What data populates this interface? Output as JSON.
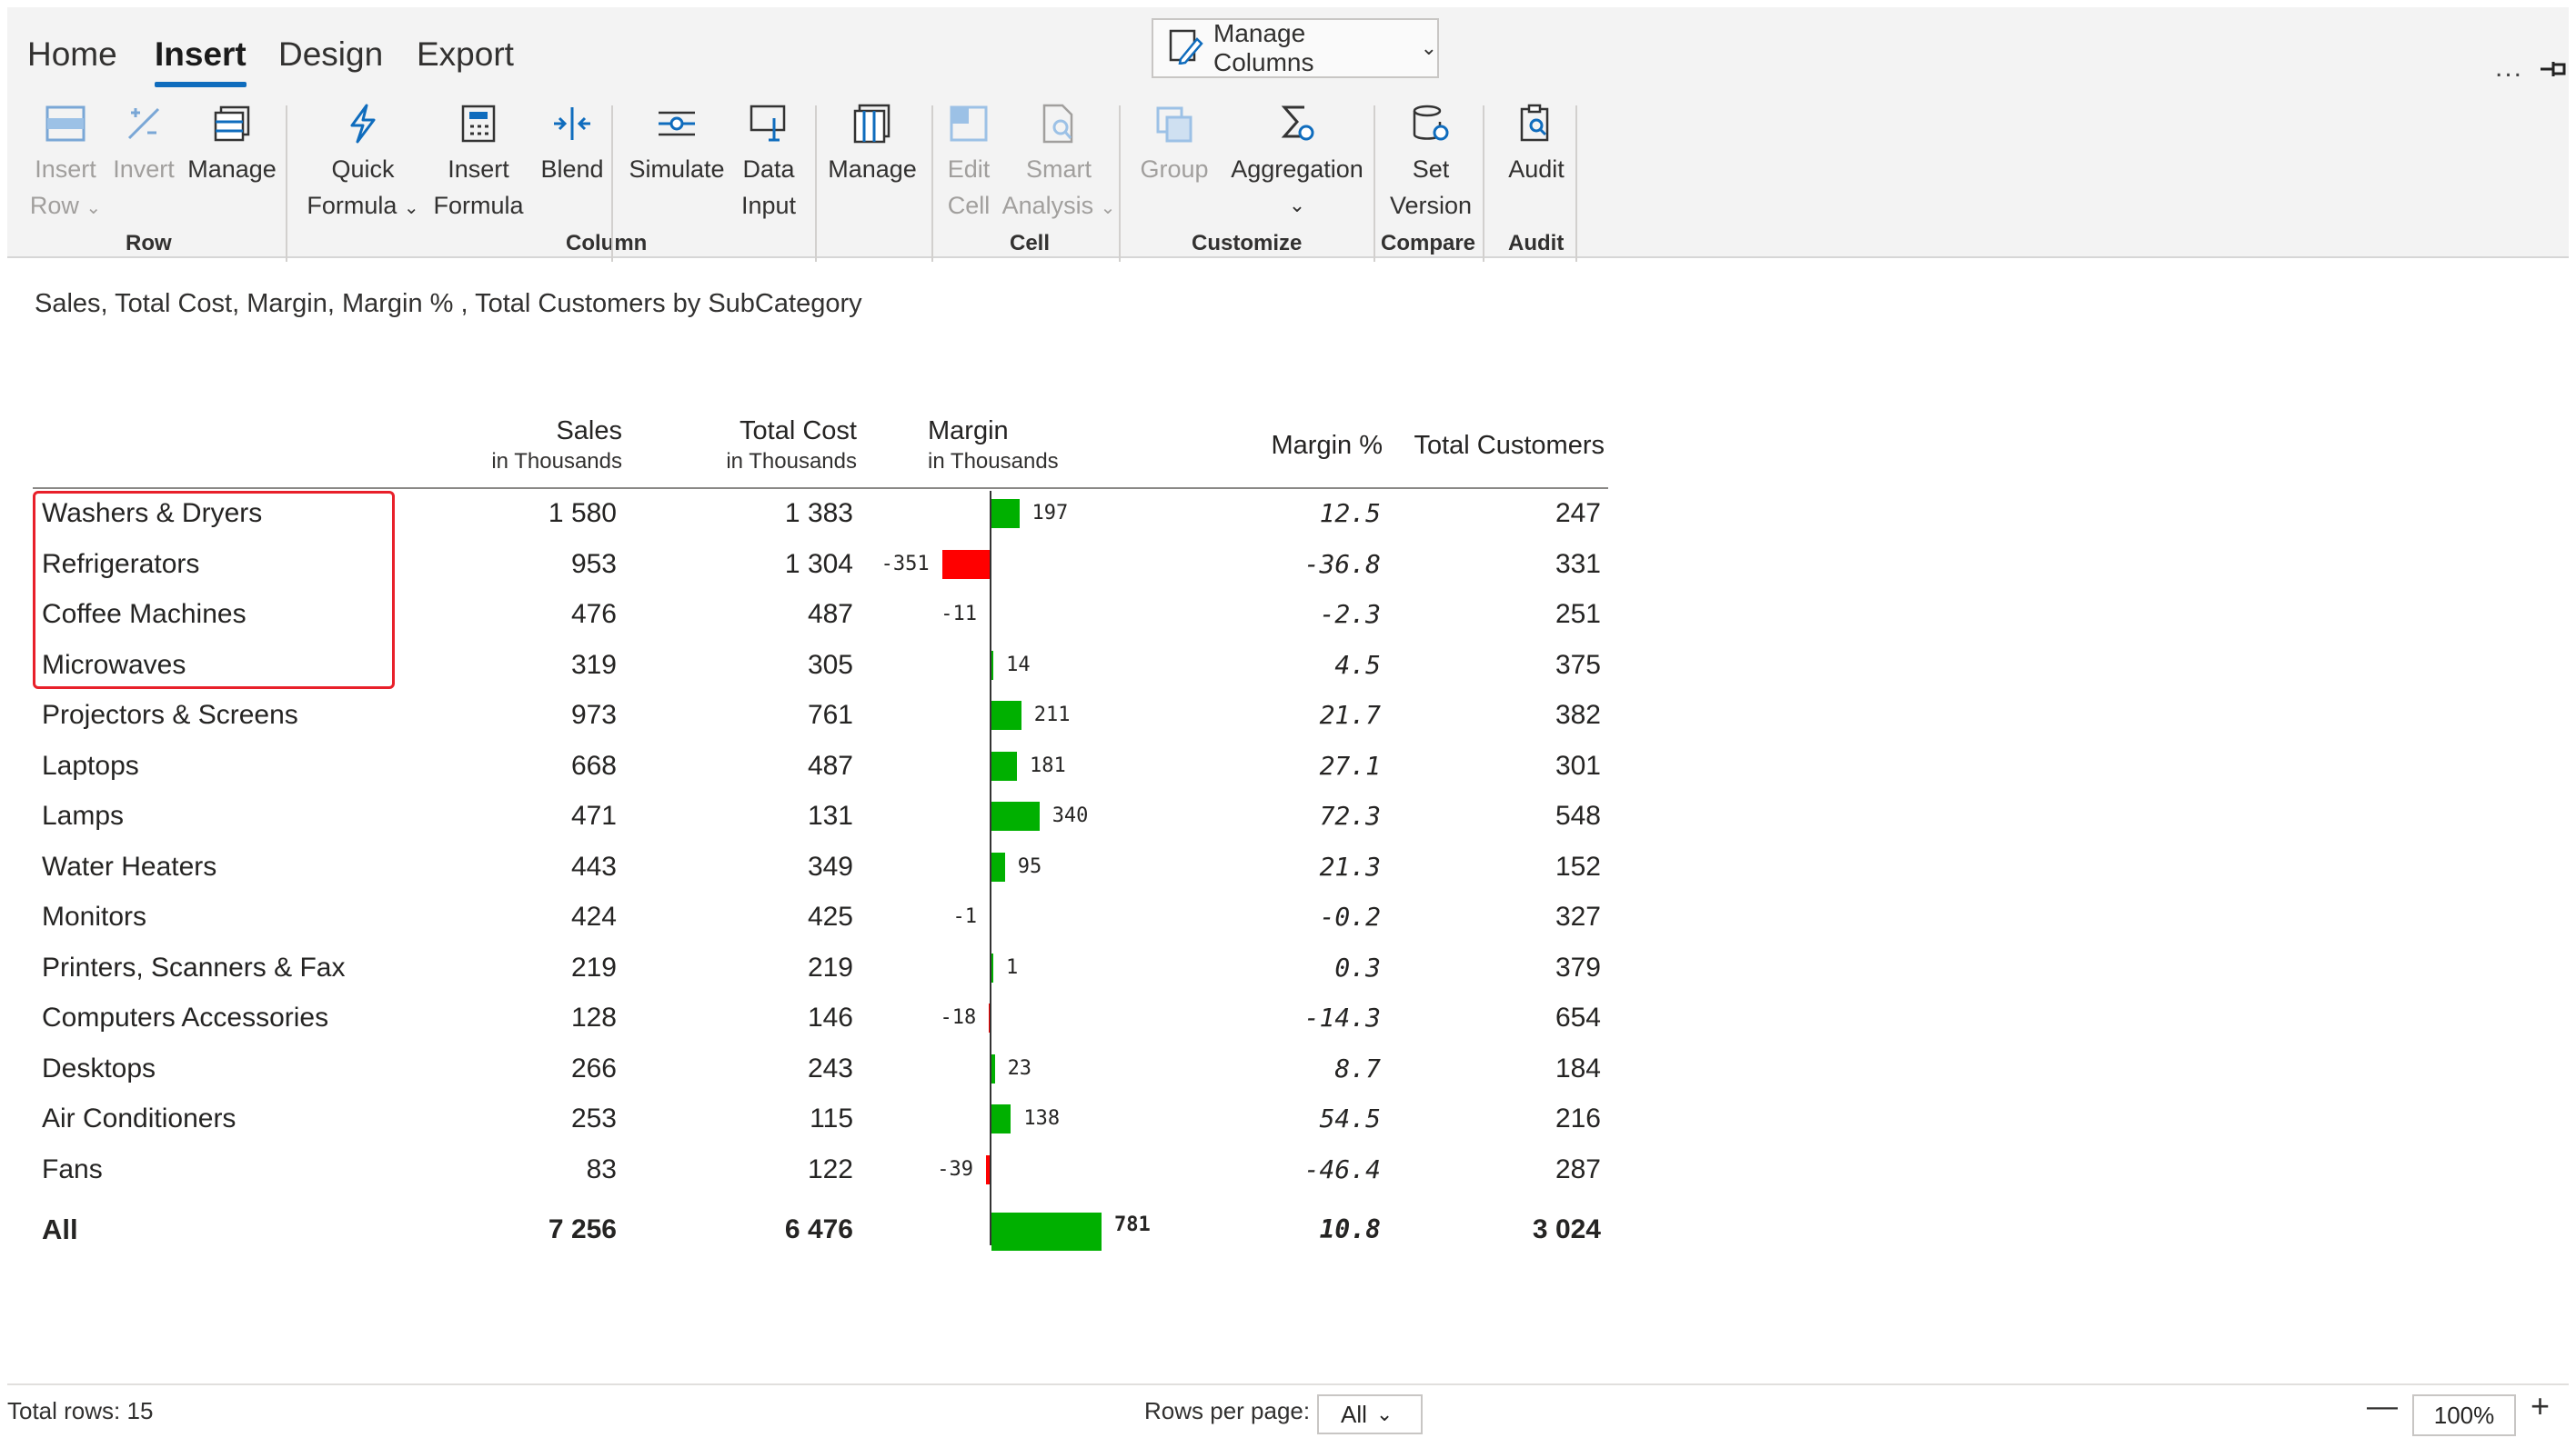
{
  "ribbon": {
    "tabs": [
      "Home",
      "Insert",
      "Design",
      "Export"
    ],
    "active_tab": "Insert",
    "manage_columns_label": "Manage Columns",
    "more": "...",
    "buttons": {
      "insert_row": [
        "Insert",
        "Row"
      ],
      "invert": "Invert",
      "manage_row": "Manage",
      "quick_formula": [
        "Quick",
        "Formula"
      ],
      "insert_formula": [
        "Insert",
        "Formula"
      ],
      "blend": "Blend",
      "simulate": "Simulate",
      "data_input": [
        "Data",
        "Input"
      ],
      "manage": "Manage",
      "edit_cell": [
        "Edit",
        "Cell"
      ],
      "smart_analysis": [
        "Smart",
        "Analysis"
      ],
      "group": "Group",
      "aggregation": "Aggregation",
      "set_version": [
        "Set",
        "Version"
      ],
      "audit": "Audit"
    },
    "groups": {
      "row": "Row",
      "column": "Column",
      "cell": "Cell",
      "customize": "Customize",
      "compare": "Compare",
      "audit": "Audit"
    }
  },
  "report": {
    "title": "Sales, Total Cost, Margin, Margin % , Total Customers by SubCategory",
    "columns": {
      "sales": {
        "label": "Sales",
        "sub": "in Thousands"
      },
      "total_cost": {
        "label": "Total Cost",
        "sub": "in Thousands"
      },
      "margin": {
        "label": "Margin",
        "sub": "in Thousands"
      },
      "margin_pct": {
        "label": "Margin %"
      },
      "customers": {
        "label": "Total Customers"
      }
    },
    "rows": [
      {
        "name": "Washers & Dryers",
        "sales": "1 580",
        "cost": "1 383",
        "margin": 197,
        "margin_label": "197",
        "pct": "12.5",
        "customers": "247"
      },
      {
        "name": "Refrigerators",
        "sales": "953",
        "cost": "1 304",
        "margin": -351,
        "margin_label": "-351",
        "pct": "-36.8",
        "customers": "331"
      },
      {
        "name": "Coffee Machines",
        "sales": "476",
        "cost": "487",
        "margin": -11,
        "margin_label": "-11",
        "pct": "-2.3",
        "customers": "251"
      },
      {
        "name": "Microwaves",
        "sales": "319",
        "cost": "305",
        "margin": 14,
        "margin_label": "14",
        "pct": "4.5",
        "customers": "375"
      },
      {
        "name": "Projectors & Screens",
        "sales": "973",
        "cost": "761",
        "margin": 211,
        "margin_label": "211",
        "pct": "21.7",
        "customers": "382"
      },
      {
        "name": "Laptops",
        "sales": "668",
        "cost": "487",
        "margin": 181,
        "margin_label": "181",
        "pct": "27.1",
        "customers": "301"
      },
      {
        "name": "Lamps",
        "sales": "471",
        "cost": "131",
        "margin": 340,
        "margin_label": "340",
        "pct": "72.3",
        "customers": "548"
      },
      {
        "name": "Water Heaters",
        "sales": "443",
        "cost": "349",
        "margin": 95,
        "margin_label": "95",
        "pct": "21.3",
        "customers": "152"
      },
      {
        "name": "Monitors",
        "sales": "424",
        "cost": "425",
        "margin": -1,
        "margin_label": "-1",
        "pct": "-0.2",
        "customers": "327"
      },
      {
        "name": "Printers, Scanners & Fax",
        "sales": "219",
        "cost": "219",
        "margin": 1,
        "margin_label": "1",
        "pct": "0.3",
        "customers": "379"
      },
      {
        "name": "Computers Accessories",
        "sales": "128",
        "cost": "146",
        "margin": -18,
        "margin_label": "-18",
        "pct": "-14.3",
        "customers": "654"
      },
      {
        "name": "Desktops",
        "sales": "266",
        "cost": "243",
        "margin": 23,
        "margin_label": "23",
        "pct": "8.7",
        "customers": "184"
      },
      {
        "name": "Air Conditioners",
        "sales": "253",
        "cost": "115",
        "margin": 138,
        "margin_label": "138",
        "pct": "54.5",
        "customers": "216"
      },
      {
        "name": "Fans",
        "sales": "83",
        "cost": "122",
        "margin": -39,
        "margin_label": "-39",
        "pct": "-46.4",
        "customers": "287"
      }
    ],
    "total": {
      "name": "All",
      "sales": "7 256",
      "cost": "6 476",
      "margin": 781,
      "margin_label": "781",
      "pct": "10.8",
      "customers": "3 024"
    },
    "colors": {
      "positive": "#00b000",
      "negative": "#ff0000",
      "highlight_box": "#e8202a"
    }
  },
  "footer": {
    "total_rows": "Total rows: 15",
    "rows_per_page_label": "Rows per page:",
    "rows_per_page_value": "All",
    "zoom": "100%"
  }
}
